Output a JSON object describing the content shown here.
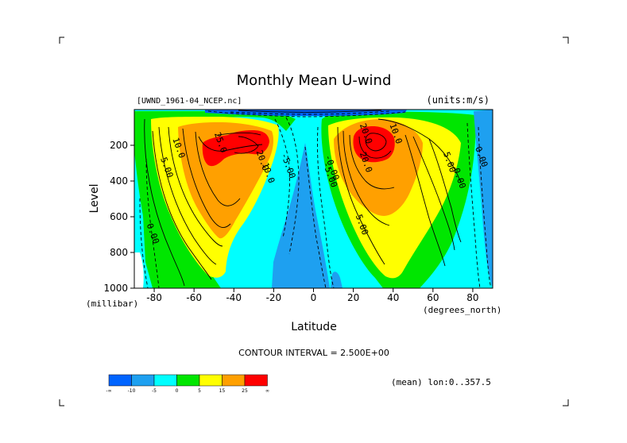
{
  "chart_data": {
    "type": "heatmap",
    "title": "Monthly Mean U-wind",
    "subtitle_left": "[UWND_1961-04_NCEP.nc]",
    "subtitle_right": "(units:m/s)",
    "xlabel": "Latitude",
    "ylabel": "Level",
    "x_unit_label": "(degrees_north)",
    "y_unit_label": "(millibar)",
    "xlim": [
      -90,
      90
    ],
    "ylim": [
      1000,
      0
    ],
    "x_ticks": [
      -80,
      -60,
      -40,
      -20,
      0,
      20,
      40,
      60,
      80
    ],
    "y_ticks": [
      200,
      400,
      600,
      800,
      1000
    ],
    "grid": false,
    "contour_interval_text": "CONTOUR INTERVAL = 2.500E+00",
    "footer_note": "(mean) lon:0..357.5",
    "colorbar": {
      "colors": [
        "#0064ff",
        "#1ea0f0",
        "#00ffff",
        "#00e600",
        "#ffff00",
        "#ffa000",
        "#ff0000"
      ],
      "tick_labels": [
        "-∞",
        "-10",
        "-5",
        "0",
        "5",
        "15",
        "25",
        "∞"
      ]
    },
    "contour_labels": [
      {
        "text": "10.0",
        "lat": -69,
        "lev": 220
      },
      {
        "text": "5.00",
        "lat": -75,
        "lev": 330
      },
      {
        "text": "0.00",
        "lat": -82,
        "lev": 700
      },
      {
        "text": "25.0",
        "lat": -48,
        "lev": 190
      },
      {
        "text": "20.0",
        "lat": -27,
        "lev": 290
      },
      {
        "text": "10.0",
        "lat": -24,
        "lev": 360
      },
      {
        "text": "-5.00",
        "lat": -14,
        "lev": 320
      },
      {
        "text": "-0.00",
        "lat": 8,
        "lev": 330
      },
      {
        "text": "-5.00",
        "lat": 7,
        "lev": 370
      },
      {
        "text": "20.0",
        "lat": 25,
        "lev": 140
      },
      {
        "text": "10.0",
        "lat": 40,
        "lev": 140
      },
      {
        "text": "20.0",
        "lat": 25,
        "lev": 300
      },
      {
        "text": "5.00",
        "lat": 23,
        "lev": 650
      },
      {
        "text": "5.00",
        "lat": 67,
        "lev": 300
      },
      {
        "text": "0.00",
        "lat": 72,
        "lev": 390
      },
      {
        "text": "0.00",
        "lat": 83,
        "lev": 270
      }
    ]
  }
}
